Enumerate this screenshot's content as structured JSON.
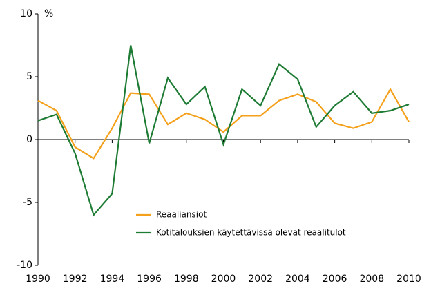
{
  "chart_data": {
    "type": "line",
    "y_label": "%",
    "x": [
      1990,
      1991,
      1992,
      1993,
      1994,
      1995,
      1996,
      1997,
      1998,
      1999,
      2000,
      2001,
      2002,
      2003,
      2004,
      2005,
      2006,
      2007,
      2008,
      2009,
      2010
    ],
    "series": [
      {
        "name": "Reaaliansiot",
        "color": "#f5a01a",
        "values": [
          3.1,
          2.3,
          -0.6,
          -1.5,
          0.9,
          3.7,
          3.6,
          1.2,
          2.1,
          1.6,
          0.6,
          1.9,
          1.9,
          3.1,
          3.6,
          3.0,
          1.3,
          0.9,
          1.4,
          4.0,
          1.4
        ]
      },
      {
        "name": "Kotitalouksien käytettävissä olevat reaalitulot",
        "color": "#1e7b34",
        "values": [
          1.5,
          2.0,
          -1.1,
          -6.0,
          -4.3,
          7.5,
          -0.3,
          4.9,
          2.8,
          4.2,
          -0.4,
          4.0,
          2.7,
          6.0,
          4.8,
          1.0,
          2.7,
          3.8,
          2.1,
          2.3,
          2.8
        ]
      }
    ],
    "xlim": [
      1990,
      2010
    ],
    "xticks": [
      1990,
      1992,
      1994,
      1996,
      1998,
      2000,
      2002,
      2004,
      2006,
      2008,
      2010
    ],
    "ylim": [
      -10,
      10
    ],
    "yticks": [
      -10,
      -5,
      0,
      5,
      10
    ],
    "legend": "lower center"
  }
}
